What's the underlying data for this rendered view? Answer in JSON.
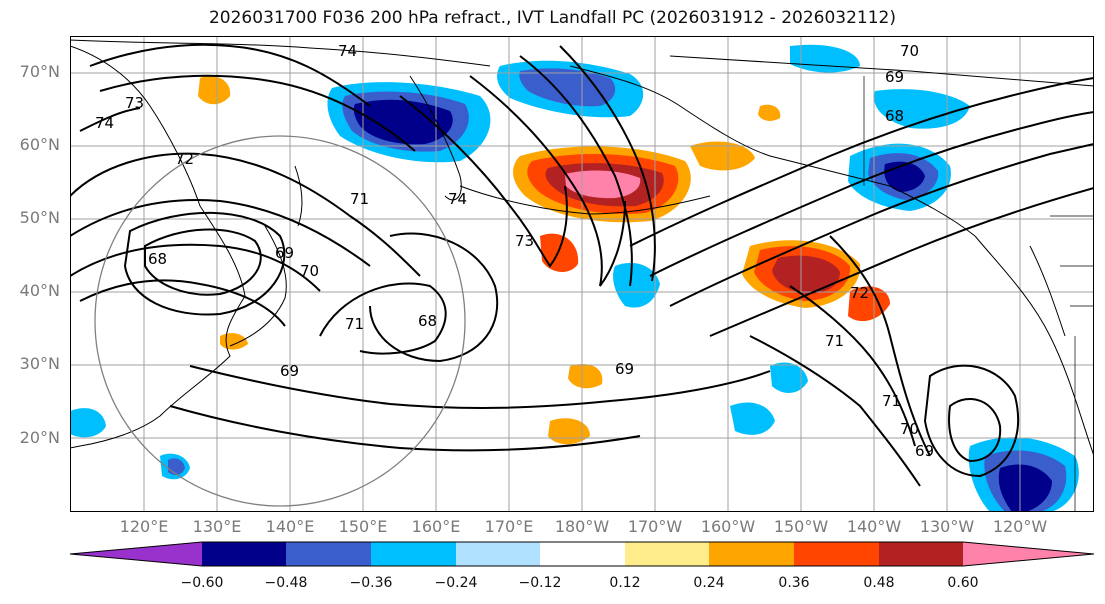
{
  "title": "2026031700 F036 200 hPa refract., IVT Landfall PC (2026031912 - 2026032112)",
  "lat_labels": [
    "70°N",
    "60°N",
    "50°N",
    "40°N",
    "30°N",
    "20°N"
  ],
  "lon_labels": [
    "120°E",
    "130°E",
    "140°E",
    "150°E",
    "160°E",
    "170°E",
    "180°W",
    "170°W",
    "160°W",
    "150°W",
    "140°W",
    "130°W",
    "120°W"
  ],
  "contour_labels": [
    "74",
    "73",
    "74",
    "72",
    "71",
    "68",
    "69",
    "70",
    "71",
    "68",
    "69",
    "74",
    "73",
    "69",
    "70",
    "69",
    "68",
    "71",
    "72",
    "71",
    "70",
    "69"
  ],
  "colorbar": {
    "ticks": [
      "−0.60",
      "−0.48",
      "−0.36",
      "−0.24",
      "−0.12",
      "0.12",
      "0.24",
      "0.36",
      "0.48",
      "0.60"
    ],
    "colors": [
      "#9932cc",
      "#00008b",
      "#3a5fcd",
      "#00bfff",
      "#b0e2ff",
      "#ffffff",
      "#ffec8b",
      "#ffa500",
      "#ff4500",
      "#b22222",
      "#ff82ab"
    ]
  }
}
